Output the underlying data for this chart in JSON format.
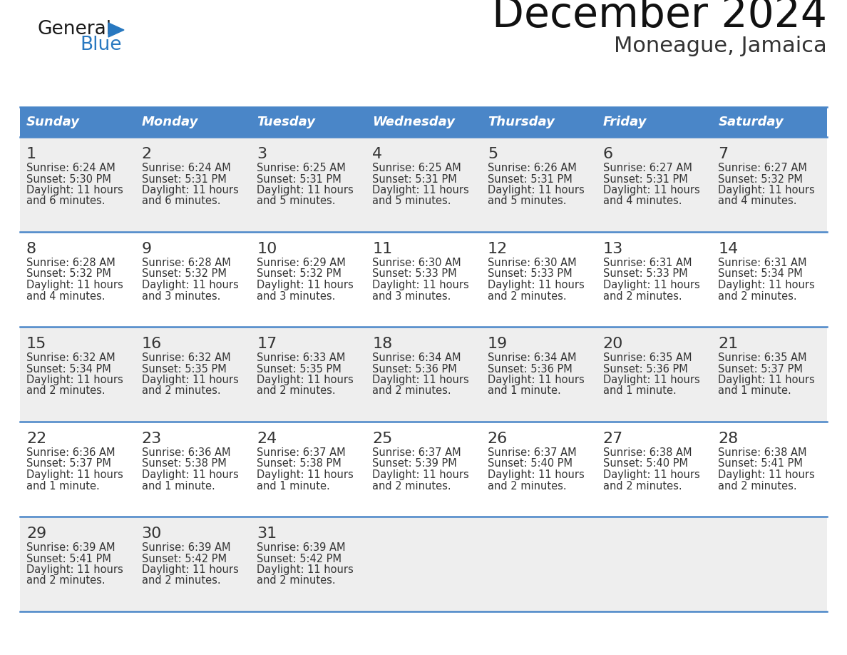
{
  "title": "December 2024",
  "subtitle": "Moneague, Jamaica",
  "header_bg": "#4a86c8",
  "header_text_color": "#ffffff",
  "cell_bg_even": "#eeeeee",
  "cell_bg_white": "#ffffff",
  "border_color": "#4a86c8",
  "day_names": [
    "Sunday",
    "Monday",
    "Tuesday",
    "Wednesday",
    "Thursday",
    "Friday",
    "Saturday"
  ],
  "days": [
    {
      "day": 1,
      "col": 0,
      "row": 0,
      "sunrise": "6:24 AM",
      "sunset": "5:30 PM",
      "daylight": "11 hours and 6 minutes."
    },
    {
      "day": 2,
      "col": 1,
      "row": 0,
      "sunrise": "6:24 AM",
      "sunset": "5:31 PM",
      "daylight": "11 hours and 6 minutes."
    },
    {
      "day": 3,
      "col": 2,
      "row": 0,
      "sunrise": "6:25 AM",
      "sunset": "5:31 PM",
      "daylight": "11 hours and 5 minutes."
    },
    {
      "day": 4,
      "col": 3,
      "row": 0,
      "sunrise": "6:25 AM",
      "sunset": "5:31 PM",
      "daylight": "11 hours and 5 minutes."
    },
    {
      "day": 5,
      "col": 4,
      "row": 0,
      "sunrise": "6:26 AM",
      "sunset": "5:31 PM",
      "daylight": "11 hours and 5 minutes."
    },
    {
      "day": 6,
      "col": 5,
      "row": 0,
      "sunrise": "6:27 AM",
      "sunset": "5:31 PM",
      "daylight": "11 hours and 4 minutes."
    },
    {
      "day": 7,
      "col": 6,
      "row": 0,
      "sunrise": "6:27 AM",
      "sunset": "5:32 PM",
      "daylight": "11 hours and 4 minutes."
    },
    {
      "day": 8,
      "col": 0,
      "row": 1,
      "sunrise": "6:28 AM",
      "sunset": "5:32 PM",
      "daylight": "11 hours and 4 minutes."
    },
    {
      "day": 9,
      "col": 1,
      "row": 1,
      "sunrise": "6:28 AM",
      "sunset": "5:32 PM",
      "daylight": "11 hours and 3 minutes."
    },
    {
      "day": 10,
      "col": 2,
      "row": 1,
      "sunrise": "6:29 AM",
      "sunset": "5:32 PM",
      "daylight": "11 hours and 3 minutes."
    },
    {
      "day": 11,
      "col": 3,
      "row": 1,
      "sunrise": "6:30 AM",
      "sunset": "5:33 PM",
      "daylight": "11 hours and 3 minutes."
    },
    {
      "day": 12,
      "col": 4,
      "row": 1,
      "sunrise": "6:30 AM",
      "sunset": "5:33 PM",
      "daylight": "11 hours and 2 minutes."
    },
    {
      "day": 13,
      "col": 5,
      "row": 1,
      "sunrise": "6:31 AM",
      "sunset": "5:33 PM",
      "daylight": "11 hours and 2 minutes."
    },
    {
      "day": 14,
      "col": 6,
      "row": 1,
      "sunrise": "6:31 AM",
      "sunset": "5:34 PM",
      "daylight": "11 hours and 2 minutes."
    },
    {
      "day": 15,
      "col": 0,
      "row": 2,
      "sunrise": "6:32 AM",
      "sunset": "5:34 PM",
      "daylight": "11 hours and 2 minutes."
    },
    {
      "day": 16,
      "col": 1,
      "row": 2,
      "sunrise": "6:32 AM",
      "sunset": "5:35 PM",
      "daylight": "11 hours and 2 minutes."
    },
    {
      "day": 17,
      "col": 2,
      "row": 2,
      "sunrise": "6:33 AM",
      "sunset": "5:35 PM",
      "daylight": "11 hours and 2 minutes."
    },
    {
      "day": 18,
      "col": 3,
      "row": 2,
      "sunrise": "6:34 AM",
      "sunset": "5:36 PM",
      "daylight": "11 hours and 2 minutes."
    },
    {
      "day": 19,
      "col": 4,
      "row": 2,
      "sunrise": "6:34 AM",
      "sunset": "5:36 PM",
      "daylight": "11 hours and 1 minute."
    },
    {
      "day": 20,
      "col": 5,
      "row": 2,
      "sunrise": "6:35 AM",
      "sunset": "5:36 PM",
      "daylight": "11 hours and 1 minute."
    },
    {
      "day": 21,
      "col": 6,
      "row": 2,
      "sunrise": "6:35 AM",
      "sunset": "5:37 PM",
      "daylight": "11 hours and 1 minute."
    },
    {
      "day": 22,
      "col": 0,
      "row": 3,
      "sunrise": "6:36 AM",
      "sunset": "5:37 PM",
      "daylight": "11 hours and 1 minute."
    },
    {
      "day": 23,
      "col": 1,
      "row": 3,
      "sunrise": "6:36 AM",
      "sunset": "5:38 PM",
      "daylight": "11 hours and 1 minute."
    },
    {
      "day": 24,
      "col": 2,
      "row": 3,
      "sunrise": "6:37 AM",
      "sunset": "5:38 PM",
      "daylight": "11 hours and 1 minute."
    },
    {
      "day": 25,
      "col": 3,
      "row": 3,
      "sunrise": "6:37 AM",
      "sunset": "5:39 PM",
      "daylight": "11 hours and 2 minutes."
    },
    {
      "day": 26,
      "col": 4,
      "row": 3,
      "sunrise": "6:37 AM",
      "sunset": "5:40 PM",
      "daylight": "11 hours and 2 minutes."
    },
    {
      "day": 27,
      "col": 5,
      "row": 3,
      "sunrise": "6:38 AM",
      "sunset": "5:40 PM",
      "daylight": "11 hours and 2 minutes."
    },
    {
      "day": 28,
      "col": 6,
      "row": 3,
      "sunrise": "6:38 AM",
      "sunset": "5:41 PM",
      "daylight": "11 hours and 2 minutes."
    },
    {
      "day": 29,
      "col": 0,
      "row": 4,
      "sunrise": "6:39 AM",
      "sunset": "5:41 PM",
      "daylight": "11 hours and 2 minutes."
    },
    {
      "day": 30,
      "col": 1,
      "row": 4,
      "sunrise": "6:39 AM",
      "sunset": "5:42 PM",
      "daylight": "11 hours and 2 minutes."
    },
    {
      "day": 31,
      "col": 2,
      "row": 4,
      "sunrise": "6:39 AM",
      "sunset": "5:42 PM",
      "daylight": "11 hours and 2 minutes."
    }
  ],
  "logo_general_color": "#1a1a1a",
  "logo_blue_color": "#2878c0",
  "logo_triangle_color": "#2878c0",
  "title_fontsize": 42,
  "subtitle_fontsize": 22,
  "header_fontsize": 13,
  "day_num_fontsize": 16,
  "cell_text_fontsize": 10.5
}
